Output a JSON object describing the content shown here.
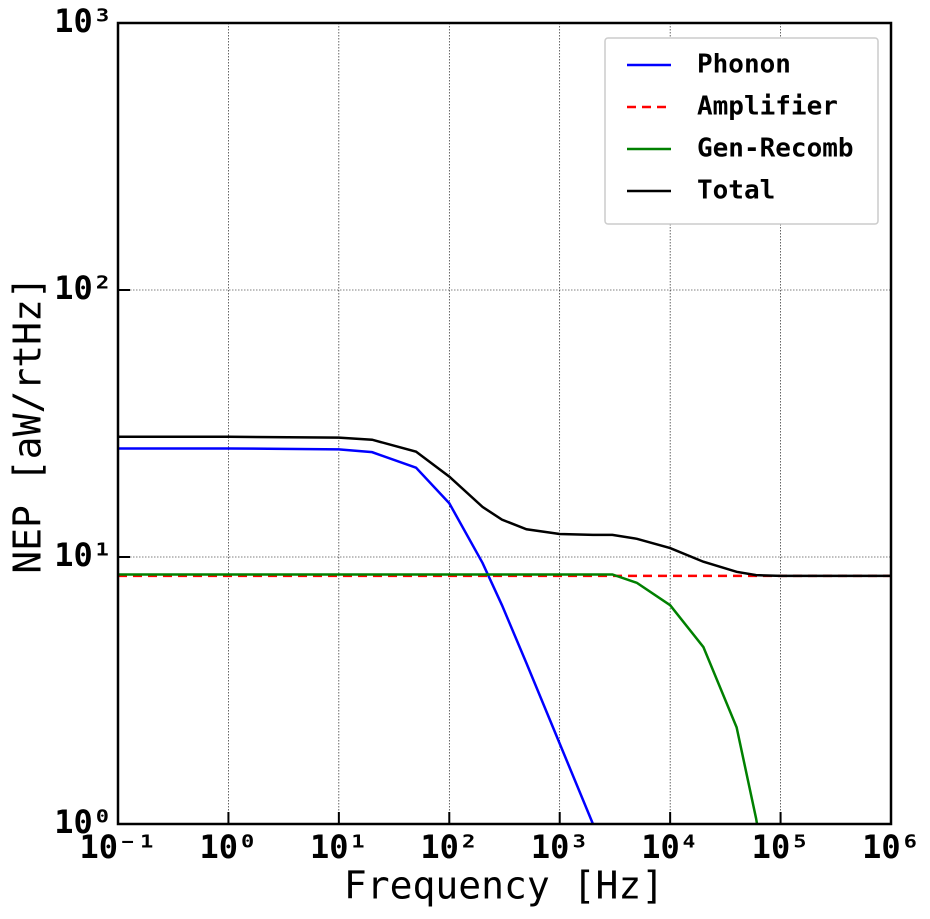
{
  "chart_data": {
    "type": "line",
    "x_label": "Frequency [Hz]",
    "y_label": "NEP [aW/rtHz]",
    "log_x": true,
    "log_y": true,
    "grid": true,
    "legend": "upper right",
    "x": [
      0.1,
      1,
      10,
      20,
      50,
      100,
      200,
      300,
      500,
      1000,
      2000,
      3000,
      5000,
      10000,
      20000,
      40000,
      60000,
      100000,
      1000000
    ],
    "series": [
      {
        "name": "Phonon",
        "color": "#0000ff",
        "dashed": false,
        "values": [
          25.5,
          25.5,
          25.3,
          24.7,
          21.6,
          15.9,
          9.5,
          6.6,
          4.0,
          2.0,
          1.0,
          0.68,
          null,
          null,
          null,
          null,
          null,
          null,
          null
        ]
      },
      {
        "name": "Amplifier",
        "color": "#ff0000",
        "dashed": true,
        "values": [
          8.5,
          8.5,
          8.5,
          8.5,
          8.5,
          8.5,
          8.5,
          8.5,
          8.5,
          8.5,
          8.5,
          8.5,
          8.5,
          8.5,
          8.5,
          8.5,
          8.5,
          8.5,
          8.5
        ]
      },
      {
        "name": "Gen-Recomb",
        "color": "#008000",
        "dashed": false,
        "values": [
          8.6,
          8.6,
          8.6,
          8.6,
          8.6,
          8.6,
          8.6,
          8.6,
          8.6,
          8.6,
          8.6,
          8.6,
          8.0,
          6.6,
          4.6,
          2.3,
          1.05,
          0.3,
          null
        ]
      },
      {
        "name": "Total",
        "color": "#000000",
        "dashed": false,
        "values": [
          28.2,
          28.2,
          28.0,
          27.5,
          24.8,
          20.0,
          15.4,
          13.8,
          12.7,
          12.2,
          12.1,
          12.1,
          11.7,
          10.8,
          9.6,
          8.8,
          8.55,
          8.5,
          8.5
        ]
      }
    ],
    "xlim": [
      0.1,
      1000000
    ],
    "ylim": [
      1,
      1000
    ],
    "xticks": [
      {
        "value": 0.1,
        "label": "10⁻¹"
      },
      {
        "value": 1,
        "label": "10⁰"
      },
      {
        "value": 10,
        "label": "10¹"
      },
      {
        "value": 100,
        "label": "10²"
      },
      {
        "value": 1000,
        "label": "10³"
      },
      {
        "value": 10000,
        "label": "10⁴"
      },
      {
        "value": 100000,
        "label": "10⁵"
      },
      {
        "value": 1000000,
        "label": "10⁶"
      }
    ],
    "yticks": [
      {
        "value": 1,
        "label": "10⁰"
      },
      {
        "value": 10,
        "label": "10¹"
      },
      {
        "value": 100,
        "label": "10²"
      },
      {
        "value": 1000,
        "label": "10³"
      }
    ]
  }
}
